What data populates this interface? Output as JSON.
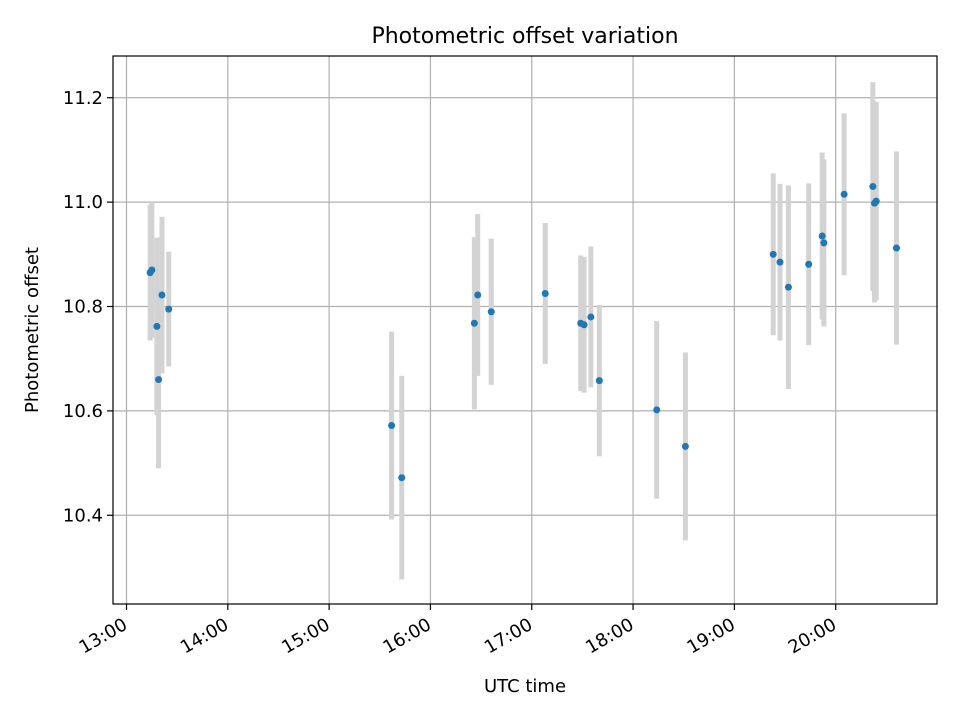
{
  "chart_data": {
    "type": "scatter",
    "title": "Photometric offset variation",
    "xlabel": "UTC time",
    "ylabel": "Photometric offset",
    "xlim": [
      "12:52",
      "21:00"
    ],
    "ylim": [
      10.23,
      11.28
    ],
    "x_ticks": [
      "13:00",
      "14:00",
      "15:00",
      "16:00",
      "17:00",
      "18:00",
      "19:00",
      "20:00"
    ],
    "y_ticks": [
      "10.4",
      "10.6",
      "10.8",
      "11.0",
      "11.2"
    ],
    "grid": true,
    "colors": {
      "marker": "#1f77b4",
      "errorbar": "#d3d3d3",
      "grid": "#b0b0b0"
    },
    "points": [
      {
        "time": "13:14",
        "y": 10.865,
        "err": 0.13
      },
      {
        "time": "13:15",
        "y": 10.87,
        "err": 0.13
      },
      {
        "time": "13:18",
        "y": 10.762,
        "err": 0.17
      },
      {
        "time": "13:19",
        "y": 10.66,
        "err": 0.17
      },
      {
        "time": "13:21",
        "y": 10.822,
        "err": 0.15
      },
      {
        "time": "13:25",
        "y": 10.795,
        "err": 0.11
      },
      {
        "time": "15:37",
        "y": 10.572,
        "err": 0.18
      },
      {
        "time": "15:43",
        "y": 10.472,
        "err": 0.195
      },
      {
        "time": "16:26",
        "y": 10.768,
        "err": 0.165
      },
      {
        "time": "16:28",
        "y": 10.822,
        "err": 0.155
      },
      {
        "time": "16:36",
        "y": 10.79,
        "err": 0.14
      },
      {
        "time": "17:08",
        "y": 10.825,
        "err": 0.135
      },
      {
        "time": "17:29",
        "y": 10.768,
        "err": 0.13
      },
      {
        "time": "17:31",
        "y": 10.765,
        "err": 0.13
      },
      {
        "time": "17:35",
        "y": 10.78,
        "err": 0.135
      },
      {
        "time": "17:40",
        "y": 10.658,
        "err": 0.145
      },
      {
        "time": "18:14",
        "y": 10.602,
        "err": 0.17
      },
      {
        "time": "18:31",
        "y": 10.532,
        "err": 0.18
      },
      {
        "time": "19:23",
        "y": 10.9,
        "err": 0.155
      },
      {
        "time": "19:27",
        "y": 10.885,
        "err": 0.15
      },
      {
        "time": "19:32",
        "y": 10.837,
        "err": 0.195
      },
      {
        "time": "19:44",
        "y": 10.881,
        "err": 0.155
      },
      {
        "time": "19:52",
        "y": 10.935,
        "err": 0.16
      },
      {
        "time": "19:53",
        "y": 10.922,
        "err": 0.16
      },
      {
        "time": "20:05",
        "y": 11.015,
        "err": 0.155
      },
      {
        "time": "20:22",
        "y": 11.03,
        "err": 0.2
      },
      {
        "time": "20:23",
        "y": 10.998,
        "err": 0.19
      },
      {
        "time": "20:24",
        "y": 11.002,
        "err": 0.19
      },
      {
        "time": "20:36",
        "y": 10.912,
        "err": 0.185
      }
    ]
  }
}
